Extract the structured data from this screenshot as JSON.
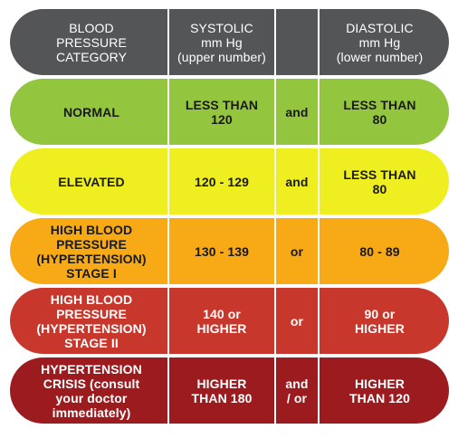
{
  "colors": {
    "header": "#545556",
    "normal": "#93c53f",
    "elevated": "#eeee20",
    "stage1": "#f7aa16",
    "stage2": "#c7372c",
    "crisis": "#9b1b1e"
  },
  "header": {
    "category": [
      "BLOOD",
      "PRESSURE",
      "CATEGORY"
    ],
    "systolic": [
      "SYSTOLIC",
      "mm Hg",
      "(upper number)"
    ],
    "joiner": "",
    "diastolic": [
      "DIASTOLIC",
      "mm Hg",
      "(lower number)"
    ]
  },
  "rows": [
    {
      "category": [
        "NORMAL"
      ],
      "systolic": [
        "LESS THAN",
        "120"
      ],
      "joiner": [
        "and"
      ],
      "diastolic": [
        "LESS THAN",
        "80"
      ]
    },
    {
      "category": [
        "ELEVATED"
      ],
      "systolic": [
        "120 - 129"
      ],
      "joiner": [
        "and"
      ],
      "diastolic": [
        "LESS THAN",
        "80"
      ]
    },
    {
      "category": [
        "HIGH BLOOD",
        "PRESSURE",
        "(HYPERTENSION)",
        "STAGE I"
      ],
      "systolic": [
        "130 - 139"
      ],
      "joiner": [
        "or"
      ],
      "diastolic": [
        "80 - 89"
      ]
    },
    {
      "category": [
        "HIGH BLOOD",
        "PRESSURE",
        "(HYPERTENSION)",
        "STAGE II"
      ],
      "systolic": [
        "140 or",
        "HIGHER"
      ],
      "joiner": [
        "or"
      ],
      "diastolic": [
        "90 or",
        "HIGHER"
      ]
    },
    {
      "category": [
        "HYPERTENSION",
        "CRISIS (consult",
        "your doctor",
        "immediately)"
      ],
      "systolic": [
        "HIGHER",
        "THAN 180"
      ],
      "joiner": [
        "and",
        "/ or"
      ],
      "diastolic": [
        "HIGHER",
        "THAN 120"
      ]
    }
  ]
}
